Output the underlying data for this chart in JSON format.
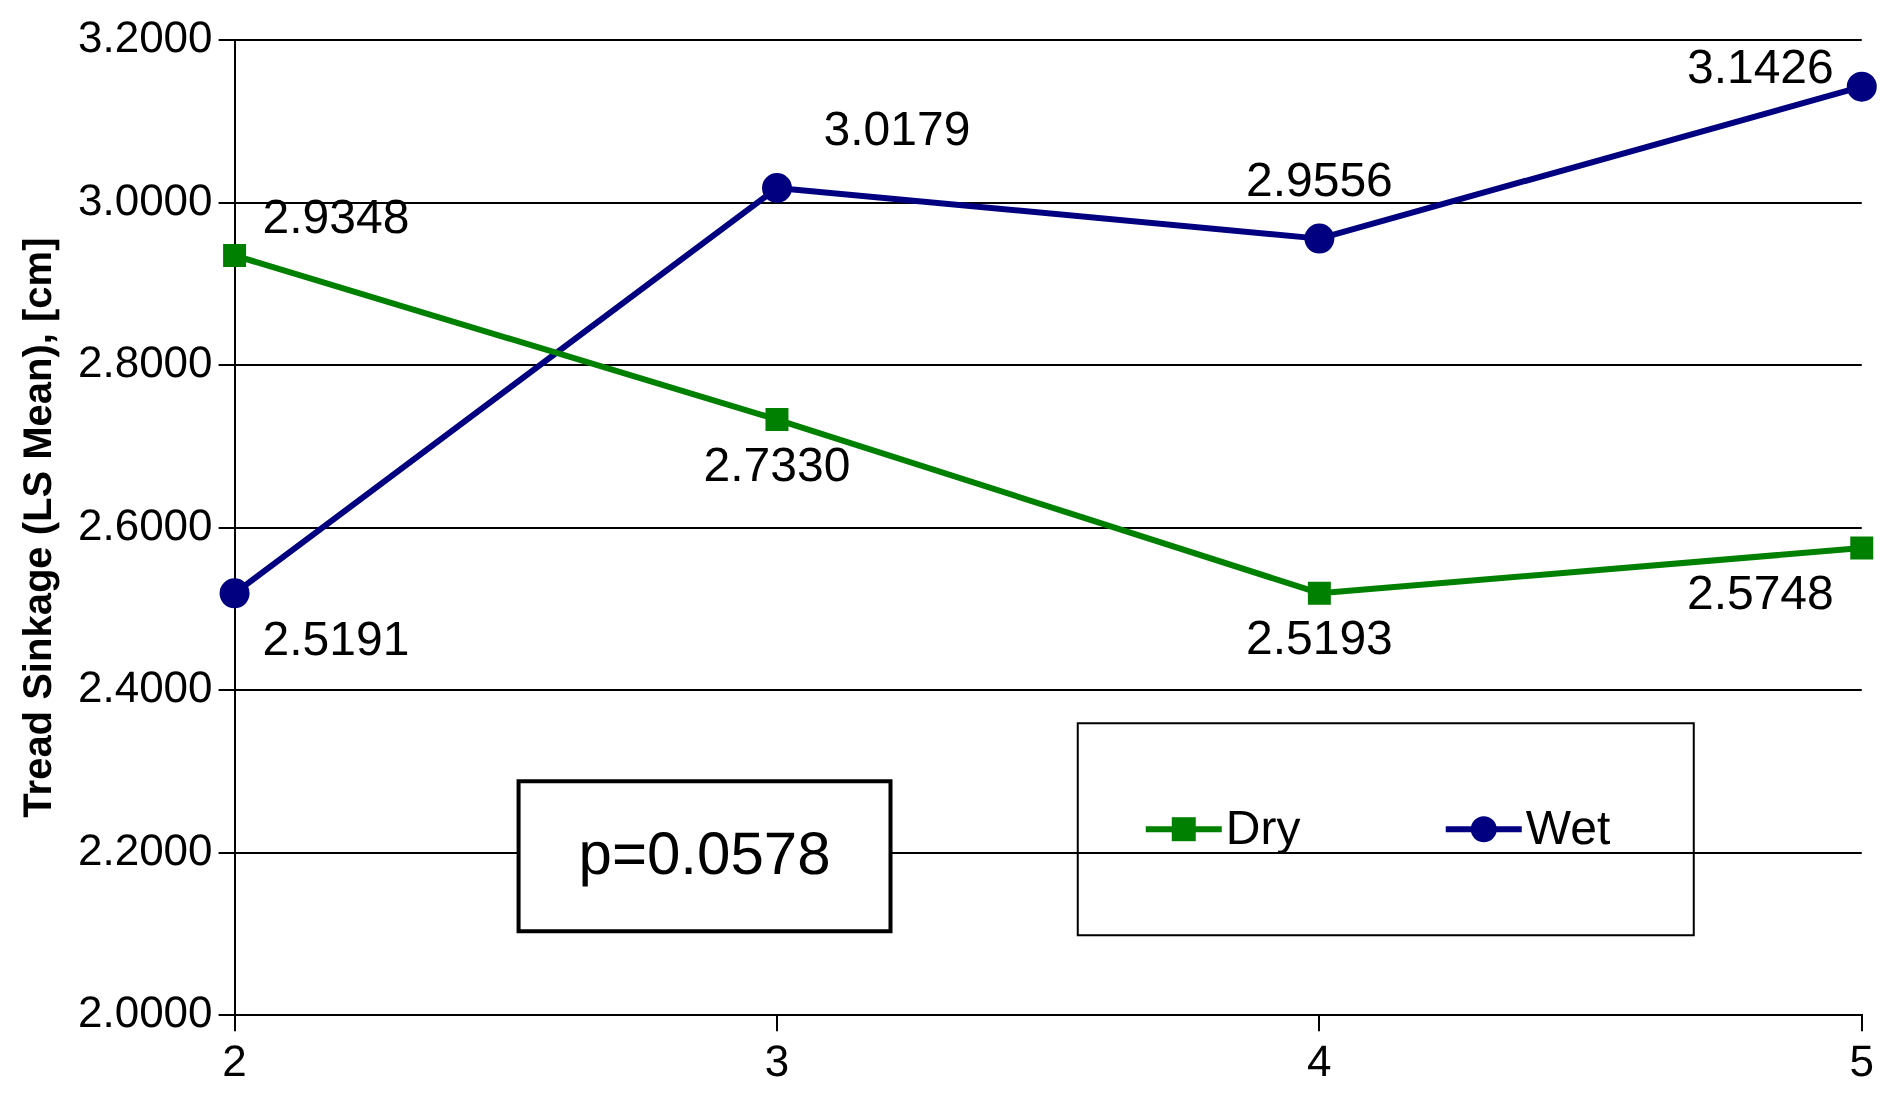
{
  "chart_data": {
    "type": "line",
    "ylabel": "Tread Sinkage (LS Mean), [cm]",
    "x": [
      2,
      3,
      4,
      5
    ],
    "xlim": [
      2,
      5
    ],
    "xticks": [
      2,
      3,
      4,
      5
    ],
    "ylim": [
      2,
      3.2
    ],
    "yticks": [
      {
        "value": 2,
        "label": "2.0000"
      },
      {
        "value": 2.2,
        "label": "2.2000"
      },
      {
        "value": 2.4,
        "label": "2.4000"
      },
      {
        "value": 2.6,
        "label": "2.6000"
      },
      {
        "value": 2.8,
        "label": "2.8000"
      },
      {
        "value": 3,
        "label": "3.0000"
      },
      {
        "value": 3.2,
        "label": "3.2000"
      }
    ],
    "series": [
      {
        "name": "Dry",
        "color": "#008000",
        "marker": "square",
        "values": [
          2.9348,
          2.733,
          2.5193,
          2.5748
        ],
        "value_labels": [
          "2.9348",
          "2.7330",
          "2.5193",
          "2.5748"
        ]
      },
      {
        "name": "Wet",
        "color": "#000080",
        "marker": "circle",
        "values": [
          2.5191,
          3.0179,
          2.9556,
          3.1426
        ],
        "value_labels": [
          "2.5191",
          "3.0179",
          "2.9556",
          "3.1426"
        ]
      }
    ],
    "annotations": [
      "p=0.0578"
    ],
    "grid": "y",
    "legend": "bottom right"
  }
}
